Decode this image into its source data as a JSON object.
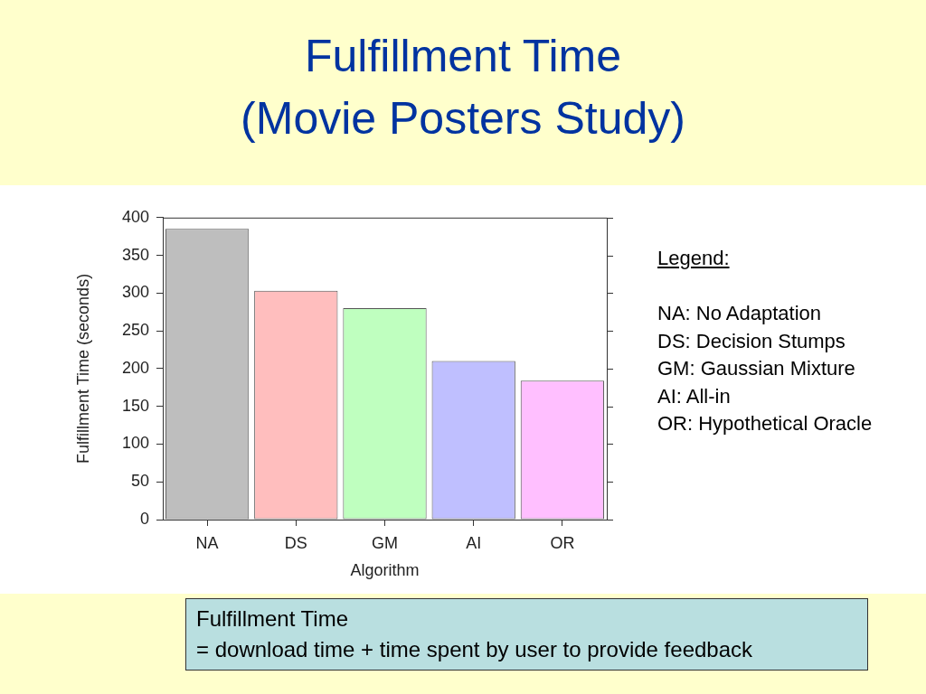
{
  "chart_data": {
    "type": "bar",
    "title": "Fulfillment Time",
    "subtitle": "(Movie Posters Study)",
    "xlabel": "Algorithm",
    "ylabel": "Fulfillment Time (seconds)",
    "categories": [
      "NA",
      "DS",
      "GM",
      "AI",
      "OR"
    ],
    "values": [
      385,
      303,
      280,
      210,
      184
    ],
    "colors": [
      "#bebebe",
      "#ffbebe",
      "#bfffbf",
      "#bfbfff",
      "#ffbfff"
    ],
    "ylim": [
      0,
      400
    ],
    "yticks": [
      0,
      50,
      100,
      150,
      200,
      250,
      300,
      350,
      400
    ],
    "annotations": [
      "Legend:\n\nNA: No Adaptation\nDS: Decision Stumps\nGM: Gaussian Mixture\nAI: All-in\nOR: Hypothetical Oracle",
      "Fulfillment Time\n= download time + time spent by user to provide feedback"
    ]
  }
}
